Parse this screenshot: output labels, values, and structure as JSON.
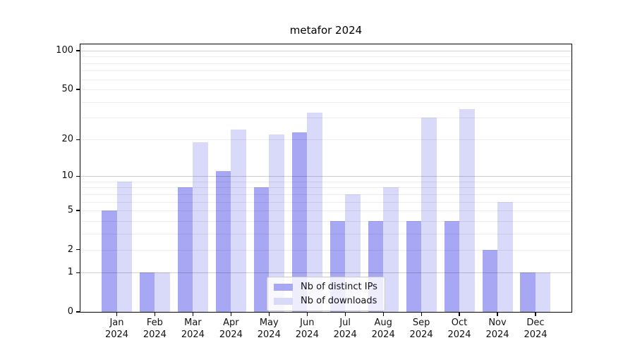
{
  "title": "metafor 2024",
  "chart_data": {
    "type": "bar",
    "title": "metafor 2024",
    "categories": [
      "Jan",
      "Feb",
      "Mar",
      "Apr",
      "May",
      "Jun",
      "Jul",
      "Aug",
      "Sep",
      "Oct",
      "Nov",
      "Dec"
    ],
    "x_tick_year": "2024",
    "series": [
      {
        "name": "Nb of distinct IPs",
        "color": "#a7a7f3",
        "values": [
          5,
          1,
          8,
          11,
          8,
          23,
          4,
          4,
          4,
          4,
          2,
          1
        ]
      },
      {
        "name": "Nb of downloads",
        "color": "#d9d9f9",
        "values": [
          9,
          1,
          19,
          24,
          22,
          33,
          7,
          8,
          30,
          35,
          6,
          1
        ]
      }
    ],
    "y_scale": "log10(1+y)",
    "ylim": [
      0,
      112
    ],
    "y_ticks": [
      0,
      1,
      2,
      5,
      10,
      20,
      50,
      100
    ],
    "grid_major": [
      1,
      10,
      100
    ],
    "grid_minor": [
      2,
      3,
      4,
      5,
      6,
      7,
      8,
      9,
      20,
      30,
      40,
      50,
      60,
      70,
      80,
      90
    ],
    "legend_position": "lower center",
    "grid_above_bars": true
  },
  "colors": {
    "background": "#ffffff",
    "axis": "#000000",
    "grid_major": "#d1d1d1",
    "grid_minor": "#ececec",
    "bar_distinct_ips": "#a7a7f3",
    "bar_downloads": "#d9d9f9",
    "legend_border": "#cbcbcb"
  }
}
